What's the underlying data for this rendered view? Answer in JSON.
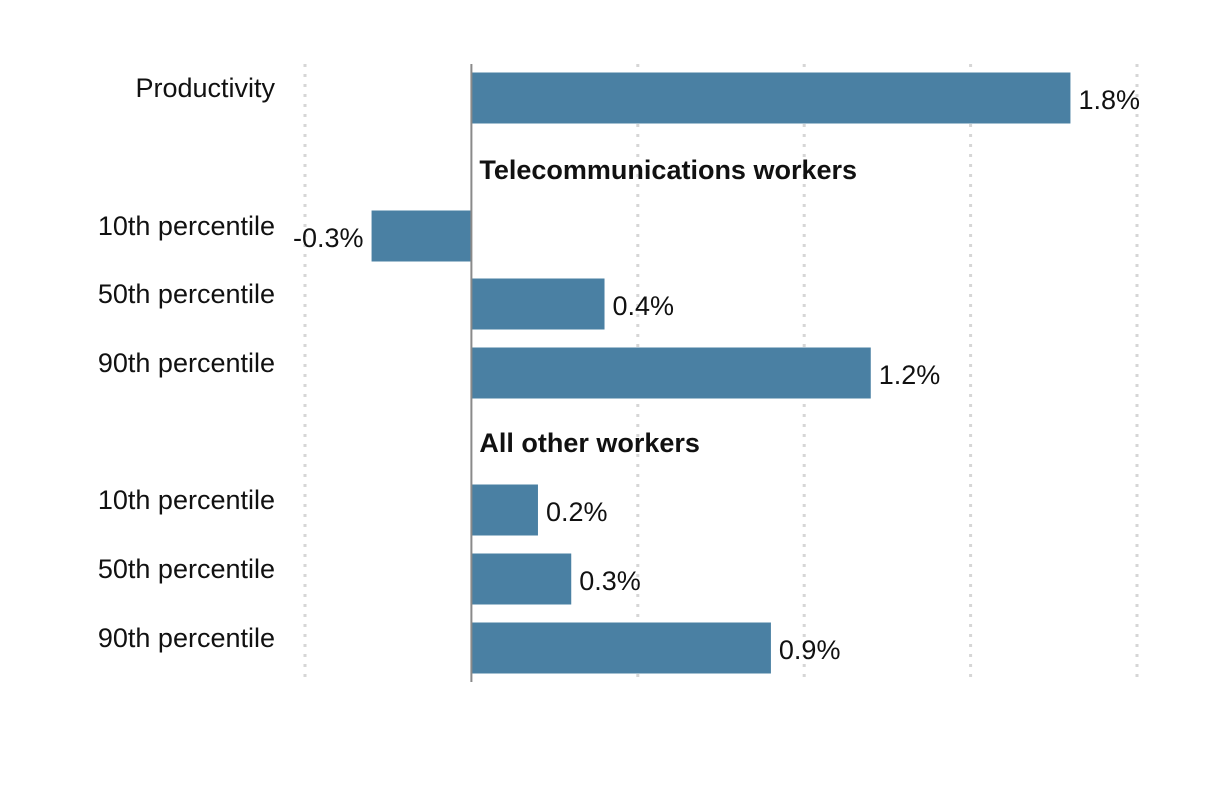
{
  "chart_data": {
    "type": "bar",
    "orientation": "horizontal",
    "title": "",
    "xlabel": "",
    "ylabel": "",
    "xlim": [
      -0.5,
      2.0
    ],
    "grid": true,
    "legend": "none",
    "bar_color": "#4a80a3",
    "rows": [
      {
        "kind": "bar",
        "label": "Productivity",
        "value": 1.8,
        "value_label": "1.8%"
      },
      {
        "kind": "group",
        "label": "Telecommunications workers"
      },
      {
        "kind": "bar",
        "label": "10th percentile",
        "value": -0.3,
        "value_label": "-0.3%"
      },
      {
        "kind": "bar",
        "label": "50th percentile",
        "value": 0.4,
        "value_label": "0.4%"
      },
      {
        "kind": "bar",
        "label": "90th percentile",
        "value": 1.2,
        "value_label": "1.2%"
      },
      {
        "kind": "group",
        "label": "All other workers"
      },
      {
        "kind": "bar",
        "label": "10th percentile",
        "value": 0.2,
        "value_label": "0.2%"
      },
      {
        "kind": "bar",
        "label": "50th percentile",
        "value": 0.3,
        "value_label": "0.3%"
      },
      {
        "kind": "bar",
        "label": "90th percentile",
        "value": 0.9,
        "value_label": "0.9%"
      }
    ]
  }
}
